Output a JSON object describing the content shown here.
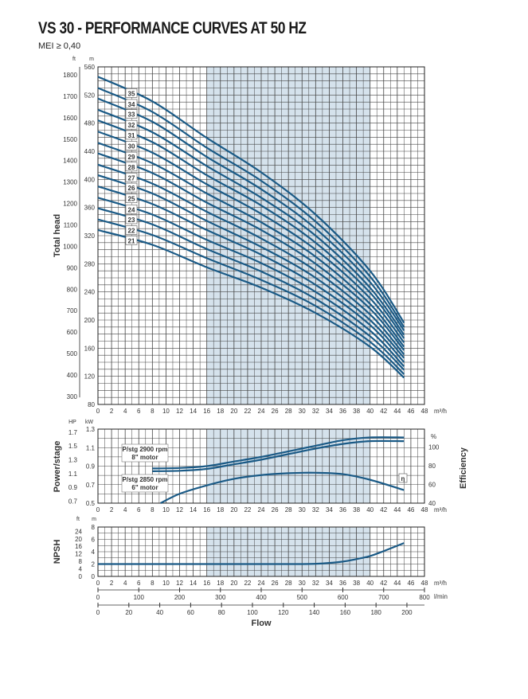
{
  "title": "VS 30 - PERFORMANCE CURVES AT 50 HZ",
  "subtitle": "MEI ≥ 0,40",
  "colors": {
    "curve": "#1a5a86",
    "shade": "#d5e2ec",
    "grid": "#444444"
  },
  "chart_data": [
    {
      "type": "line",
      "name": "head",
      "ylabel": "Total head",
      "x_unit": "m³/h",
      "y_unit_left": "ft",
      "y_unit_right": "m",
      "xlim": [
        0,
        48
      ],
      "ylim": [
        80,
        560
      ],
      "x_ticks": [
        0,
        2,
        4,
        6,
        8,
        10,
        12,
        14,
        16,
        18,
        20,
        22,
        24,
        26,
        28,
        30,
        32,
        34,
        36,
        38,
        40,
        42,
        44,
        46,
        48
      ],
      "y_ticks_m": [
        80,
        120,
        160,
        200,
        240,
        280,
        320,
        360,
        400,
        440,
        480,
        520,
        560
      ],
      "y_ticks_ft": [
        300,
        400,
        500,
        600,
        700,
        800,
        900,
        1000,
        1100,
        1200,
        1300,
        1400,
        1500,
        1600,
        1700,
        1800
      ],
      "shaded_range": [
        16,
        40
      ],
      "grid": true,
      "x": [
        0,
        8,
        16,
        24,
        32,
        40,
        45
      ],
      "series": [
        {
          "name": "21",
          "values": [
            328,
            307,
            275,
            246,
            210,
            162,
            118
          ]
        },
        {
          "name": "22",
          "values": [
            343,
            321,
            288,
            257,
            220,
            169,
            123
          ]
        },
        {
          "name": "23",
          "values": [
            359,
            336,
            301,
            269,
            230,
            177,
            129
          ]
        },
        {
          "name": "24",
          "values": [
            374,
            350,
            314,
            281,
            240,
            185,
            134
          ]
        },
        {
          "name": "25",
          "values": [
            390,
            365,
            328,
            293,
            250,
            193,
            140
          ]
        },
        {
          "name": "26",
          "values": [
            406,
            380,
            341,
            304,
            260,
            200,
            146
          ]
        },
        {
          "name": "27",
          "values": [
            421,
            394,
            354,
            316,
            270,
            208,
            151
          ]
        },
        {
          "name": "28",
          "values": [
            437,
            409,
            367,
            328,
            280,
            216,
            157
          ]
        },
        {
          "name": "29",
          "values": [
            452,
            423,
            380,
            339,
            290,
            223,
            162
          ]
        },
        {
          "name": "30",
          "values": [
            468,
            438,
            393,
            351,
            300,
            231,
            168
          ]
        },
        {
          "name": "31",
          "values": [
            484,
            453,
            406,
            363,
            310,
            239,
            174
          ]
        },
        {
          "name": "32",
          "values": [
            499,
            467,
            419,
            374,
            320,
            246,
            179
          ]
        },
        {
          "name": "33",
          "values": [
            515,
            482,
            432,
            386,
            330,
            254,
            185
          ]
        },
        {
          "name": "34",
          "values": [
            530,
            496,
            445,
            398,
            340,
            262,
            190
          ]
        },
        {
          "name": "35",
          "values": [
            546,
            511,
            459,
            410,
            350,
            270,
            196
          ]
        }
      ]
    },
    {
      "type": "line",
      "name": "power",
      "ylabel": "Power/stage",
      "y2label": "Efficiency",
      "x_unit": "m³/h",
      "y_unit_left": "HP",
      "y_unit_mid": "kW",
      "y_unit_right": "%",
      "xlim": [
        0,
        48
      ],
      "ylim": [
        0.5,
        1.3
      ],
      "y_ticks_kw": [
        0.5,
        0.7,
        0.9,
        1.1,
        1.3
      ],
      "y_ticks_hp": [
        "0.7",
        "0.9",
        "1.1",
        "1.3",
        "1.5",
        "1.7"
      ],
      "y_ticks_pct": [
        40,
        60,
        80,
        100
      ],
      "shaded_range": [
        16,
        40
      ],
      "grid": true,
      "series": [
        {
          "name": "P/stg 2900 rpm 8\" motor",
          "label_line1": "P/stg 2900 rpm",
          "label_line2": "8\" motor",
          "x": [
            8,
            12,
            16,
            20,
            24,
            28,
            32,
            36,
            40,
            45
          ],
          "values": [
            0.875,
            0.88,
            0.9,
            0.95,
            1.0,
            1.06,
            1.12,
            1.18,
            1.21,
            1.21
          ]
        },
        {
          "name": "P/stg 2850 rpm 6\" motor",
          "label_line1": "P/stg 2850 rpm",
          "label_line2": "6\" motor",
          "x": [
            8,
            12,
            16,
            20,
            24,
            28,
            32,
            36,
            40,
            45
          ],
          "values": [
            0.845,
            0.85,
            0.87,
            0.92,
            0.97,
            1.03,
            1.09,
            1.14,
            1.17,
            1.17
          ]
        },
        {
          "name": "η",
          "axis": "%",
          "x": [
            9.2,
            12,
            16,
            20,
            24,
            28,
            32,
            36,
            40,
            45
          ],
          "values": [
            40,
            50,
            59,
            66,
            70,
            72,
            72.5,
            71,
            65,
            54
          ]
        }
      ]
    },
    {
      "type": "line",
      "name": "npsh",
      "ylabel": "NPSH",
      "x_unit": "m³/h",
      "y_unit_left": "ft",
      "y_unit_right": "m",
      "xlim": [
        0,
        48
      ],
      "ylim": [
        0,
        8
      ],
      "y_ticks_m": [
        0,
        2,
        4,
        6,
        8
      ],
      "y_ticks_ft": [
        0,
        4,
        8,
        12,
        16,
        20,
        24
      ],
      "shaded_range": [
        16,
        40
      ],
      "grid": true,
      "x": [
        0,
        8,
        16,
        24,
        30,
        33,
        36,
        38,
        40,
        42,
        45
      ],
      "values": [
        2,
        2,
        2,
        2,
        2,
        2.1,
        2.4,
        2.8,
        3.3,
        4.1,
        5.4
      ]
    }
  ],
  "flow_axes": {
    "lmin_unit": "l/min",
    "lmin_ticks": [
      0,
      100,
      200,
      300,
      400,
      500,
      600,
      700,
      800
    ],
    "third_ticks": [
      0,
      20,
      40,
      60,
      80,
      100,
      120,
      140,
      160,
      180,
      200
    ],
    "xlabel": "Flow"
  }
}
